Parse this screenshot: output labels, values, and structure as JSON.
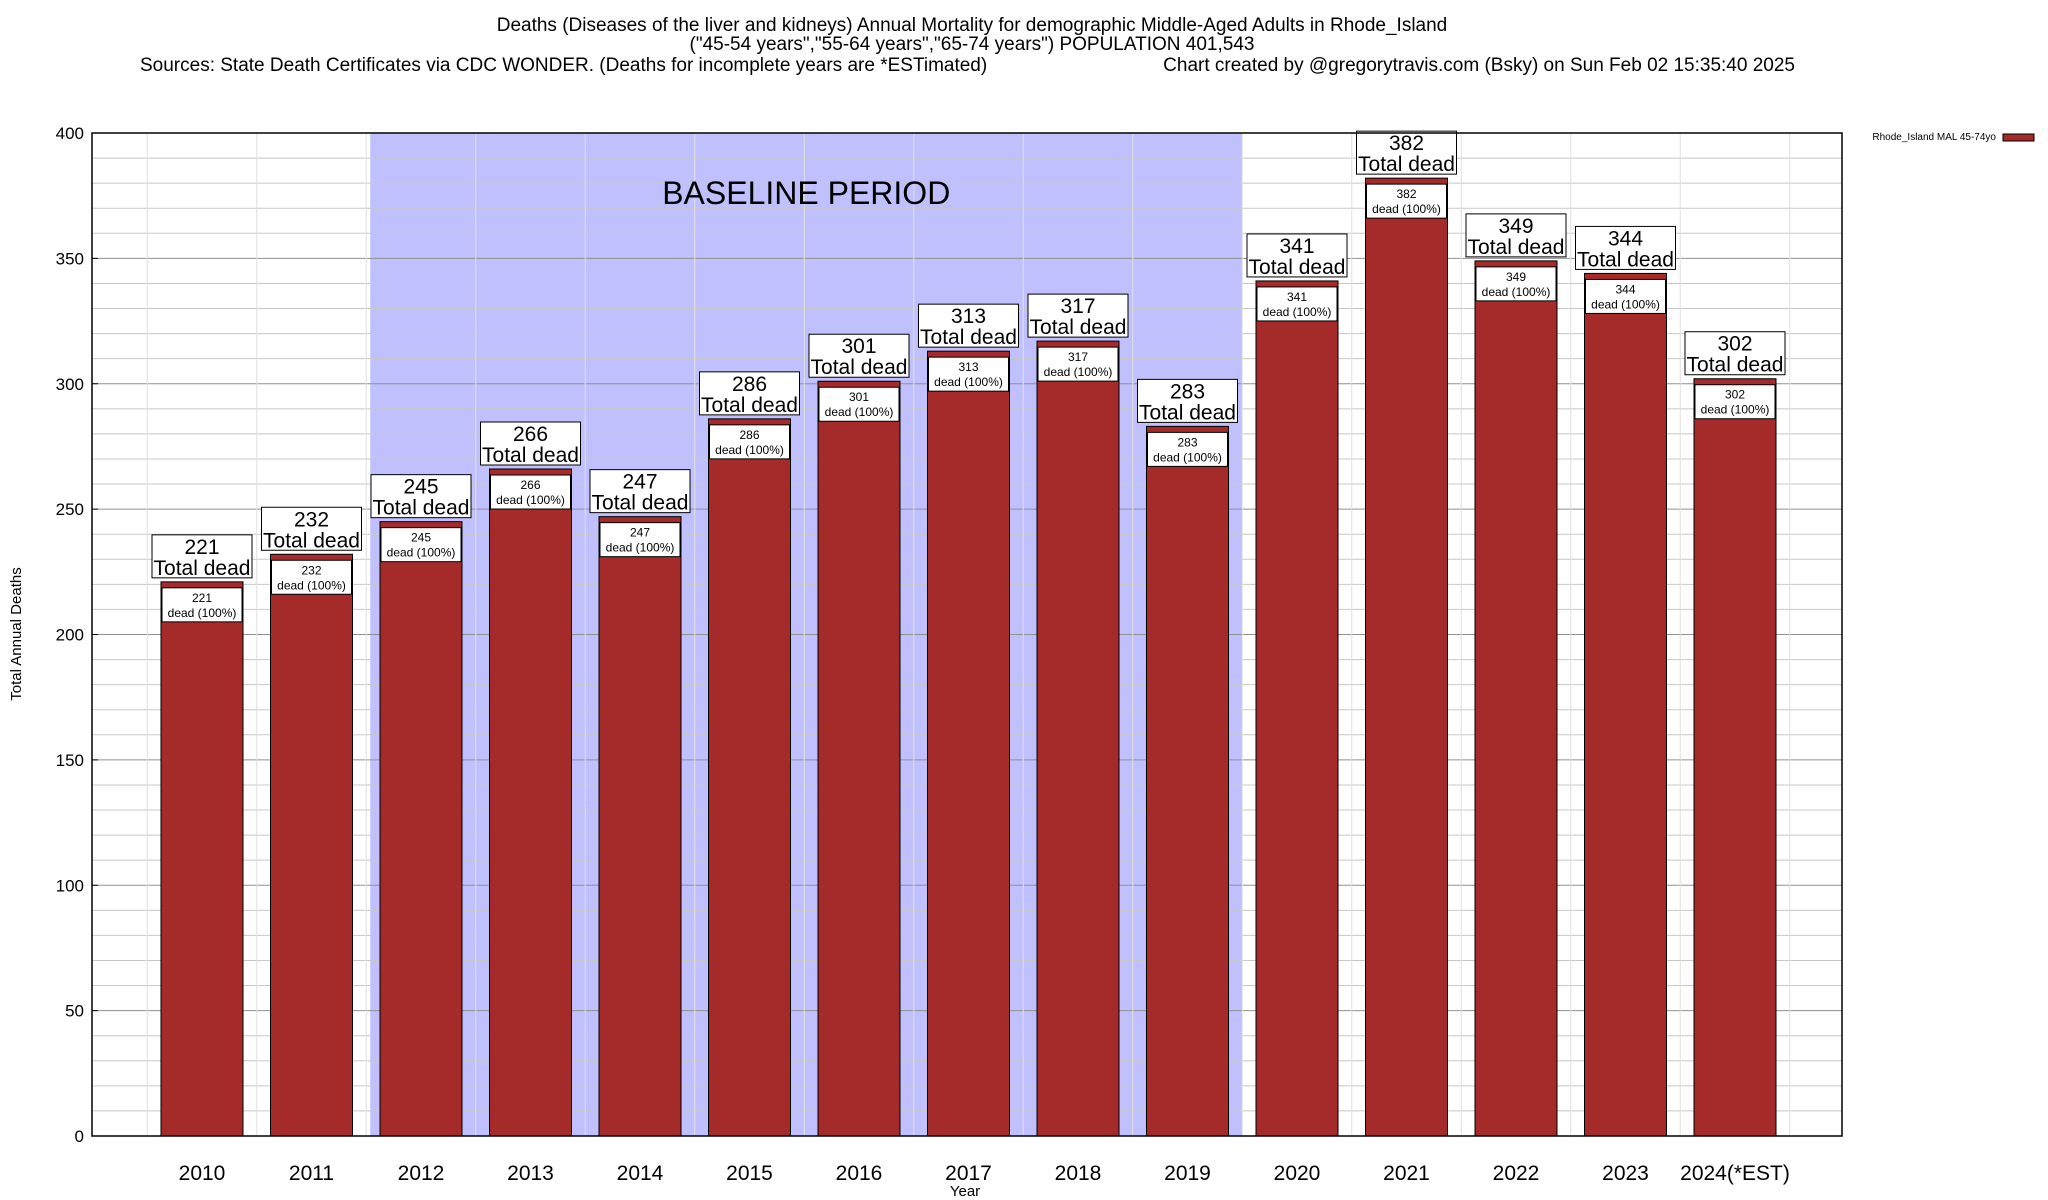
{
  "chart_data": {
    "type": "bar",
    "title": "Deaths (Diseases of the liver and kidneys) Annual Mortality for demographic Middle-Aged Adults in Rhode_Island",
    "subtitle": "(\"45-54 years\",\"55-64 years\",\"65-74 years\") POPULATION 401,543",
    "sources": "Sources: State Death Certificates via CDC WONDER. (Deaths for incomplete years are *ESTimated)",
    "credit": "Chart created by @gregorytravis.com (Bsky) on Sun Feb 02 15:35:40 2025",
    "xlabel": "Year",
    "ylabel": "Total Annual Deaths",
    "ylim": [
      0,
      400
    ],
    "yticks": [
      0,
      50,
      100,
      150,
      200,
      250,
      300,
      350,
      400
    ],
    "categories": [
      "2010",
      "2011",
      "2012",
      "2013",
      "2014",
      "2015",
      "2016",
      "2017",
      "2018",
      "2019",
      "2020",
      "2021",
      "2022",
      "2023",
      "2024(*EST)"
    ],
    "series": [
      {
        "name": "Rhode_Island MAL 45-74yo",
        "values": [
          221,
          232,
          245,
          266,
          247,
          286,
          301,
          313,
          317,
          283,
          341,
          382,
          349,
          344,
          302
        ]
      }
    ],
    "total_label": "Total dead",
    "inner_label_suffix": "dead (100%)",
    "annotation": {
      "text": "BASELINE PERIOD",
      "from_category": "2012",
      "to_category": "2019"
    },
    "grid": true,
    "legend_position": "top-right",
    "colors": {
      "bar": "#a52a2a",
      "baseline_band": "#c0c0ff",
      "grid": "#a0a0a0"
    }
  }
}
